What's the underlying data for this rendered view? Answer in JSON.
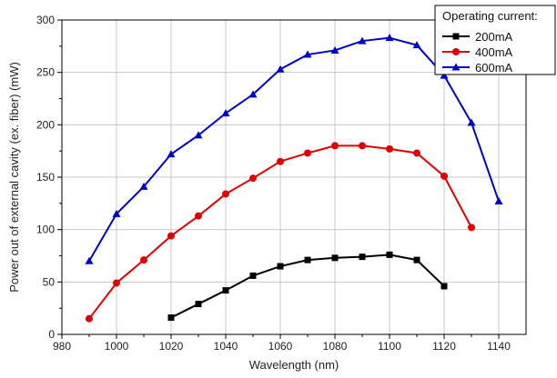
{
  "chart_data": {
    "type": "line",
    "title": "",
    "xlabel": "Wavelength (nm)",
    "ylabel": "Power out of external cavity (ex. fiber) (mW)",
    "xlim": [
      980,
      1150
    ],
    "ylim": [
      0,
      300
    ],
    "xticks": [
      980,
      1000,
      1020,
      1040,
      1060,
      1080,
      1100,
      1120,
      1140
    ],
    "yticks": [
      0,
      50,
      100,
      150,
      200,
      250,
      300
    ],
    "grid": true,
    "legend_title": "Operating current:",
    "legend_position": "top-right",
    "series": [
      {
        "name": "200mA",
        "color": "#000000",
        "marker": "square",
        "x": [
          1020,
          1030,
          1040,
          1050,
          1060,
          1070,
          1080,
          1090,
          1100,
          1110,
          1120
        ],
        "y": [
          16,
          29,
          42,
          56,
          65,
          71,
          73,
          74,
          76,
          71,
          46
        ]
      },
      {
        "name": "400mA",
        "color": "#e00000",
        "marker": "circle",
        "x": [
          990,
          1000,
          1010,
          1020,
          1030,
          1040,
          1050,
          1060,
          1070,
          1080,
          1090,
          1100,
          1110,
          1120,
          1130
        ],
        "y": [
          15,
          49,
          71,
          94,
          113,
          134,
          149,
          165,
          173,
          180,
          180,
          177,
          173,
          151,
          102
        ]
      },
      {
        "name": "600mA",
        "color": "#0000cc",
        "marker": "triangle",
        "x": [
          990,
          1000,
          1010,
          1020,
          1030,
          1040,
          1050,
          1060,
          1070,
          1080,
          1090,
          1100,
          1110,
          1120,
          1130,
          1140
        ],
        "y": [
          70,
          115,
          141,
          172,
          190,
          211,
          229,
          253,
          267,
          271,
          280,
          283,
          276,
          247,
          202,
          127
        ]
      }
    ]
  }
}
